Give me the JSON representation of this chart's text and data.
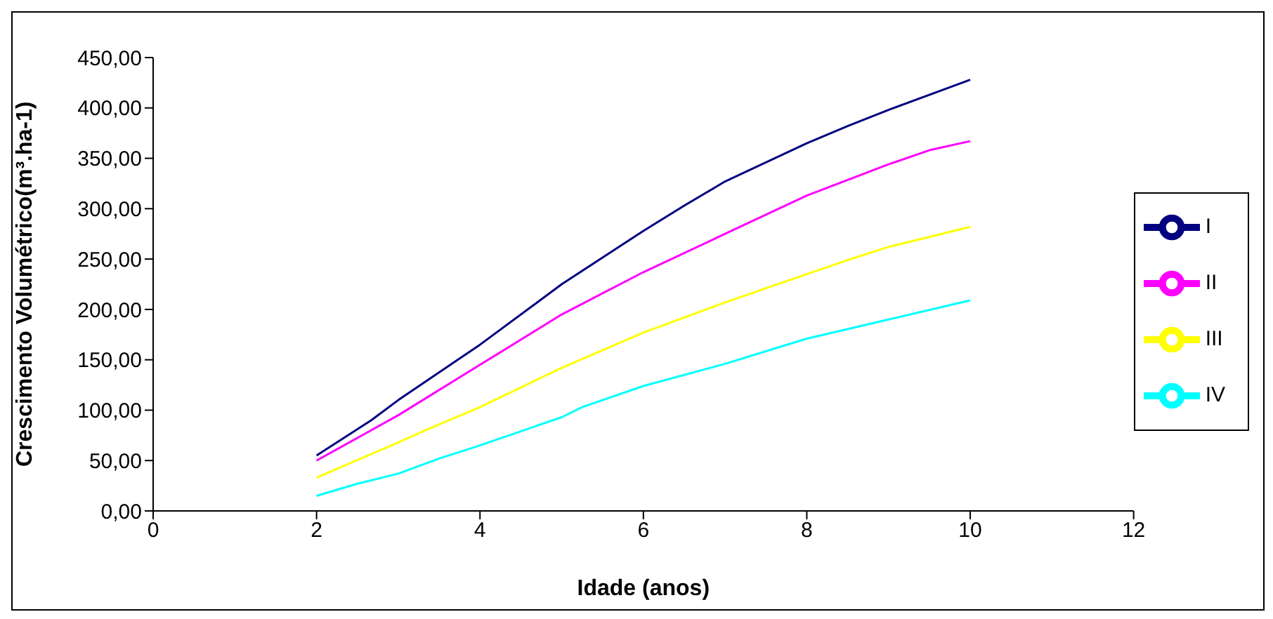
{
  "chart_data": {
    "type": "line",
    "xlabel": "Idade (anos)",
    "ylabel": "Crescimento Volumétrico(m³.ha-1)",
    "xlim": [
      0,
      12
    ],
    "xticks": [
      0,
      2,
      4,
      6,
      8,
      10,
      12
    ],
    "ylim": [
      0,
      450
    ],
    "yticks": [
      {
        "value": 0,
        "label": "0,00"
      },
      {
        "value": 50,
        "label": "50,00"
      },
      {
        "value": 100,
        "label": "100,00"
      },
      {
        "value": 150,
        "label": "150,00"
      },
      {
        "value": 200,
        "label": "200,00"
      },
      {
        "value": 250,
        "label": "250,00"
      },
      {
        "value": 300,
        "label": "300,00"
      },
      {
        "value": 350,
        "label": "350,00"
      },
      {
        "value": 400,
        "label": "400,00"
      },
      {
        "value": 450,
        "label": "450,00"
      }
    ],
    "grid": false,
    "legend": "right",
    "marker": "none",
    "series": [
      {
        "name": "I",
        "color": "#000080",
        "x": [
          2,
          2.67,
          3,
          4,
          5,
          6,
          6.5,
          6.75,
          7,
          8,
          8.5,
          9,
          10
        ],
        "values": [
          55,
          90,
          110,
          165,
          225,
          278,
          303,
          315,
          327,
          365,
          382,
          398,
          428
        ]
      },
      {
        "name": "II",
        "color": "#ff00ff",
        "x": [
          2,
          3,
          4,
          5,
          6,
          7,
          8,
          9,
          9.5,
          10
        ],
        "values": [
          50,
          95,
          145,
          195,
          237,
          275,
          313,
          344,
          358,
          367
        ]
      },
      {
        "name": "III",
        "color": "#ffff00",
        "x": [
          2,
          3,
          3.33,
          4,
          5,
          6,
          7,
          8,
          8.5,
          9,
          10
        ],
        "values": [
          33,
          68,
          80,
          103,
          142,
          177,
          207,
          235,
          249,
          262,
          282
        ]
      },
      {
        "name": "IV",
        "color": "#00ffff",
        "x": [
          2,
          2.5,
          3,
          3.5,
          4,
          5,
          5.25,
          6,
          7,
          8,
          9,
          10
        ],
        "values": [
          15,
          27,
          37,
          52,
          65,
          93,
          103,
          124,
          146,
          171,
          190,
          209
        ]
      }
    ]
  }
}
